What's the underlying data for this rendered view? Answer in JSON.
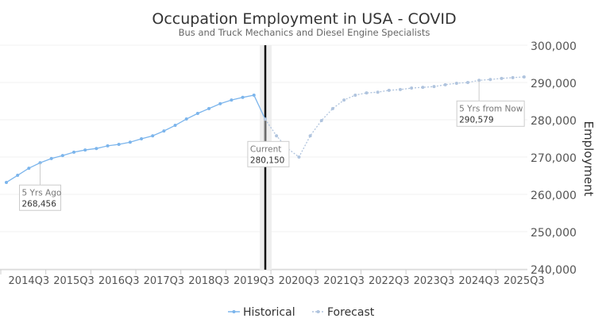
{
  "chart_data": {
    "type": "line",
    "title": "Occupation Employment in USA - COVID",
    "subtitle": "Bus and Truck Mechanics and Diesel Engine Specialists",
    "ylabel": "Employment",
    "xlabel": "",
    "ylim": [
      240000,
      300000
    ],
    "yticks": [
      "240,000",
      "250,000",
      "260,000",
      "270,000",
      "280,000",
      "290,000",
      "300,000"
    ],
    "ytick_values": [
      240000,
      250000,
      260000,
      270000,
      280000,
      290000,
      300000
    ],
    "xtick_labels": [
      "2014Q3",
      "2015Q3",
      "2016Q3",
      "2017Q3",
      "2018Q3",
      "2019Q3",
      "2020Q3",
      "2021Q3",
      "2022Q3",
      "2023Q3",
      "2024Q3",
      "2025Q3"
    ],
    "first_period": "2014Q1",
    "grid": true,
    "legend_position": "bottom",
    "colors": {
      "historical": "#7cb5ec",
      "forecast": "#b0c4de",
      "current_line": "#111111"
    },
    "series": [
      {
        "name": "Historical",
        "start_index": 0,
        "values": [
          263200,
          265100,
          267000,
          268456,
          269600,
          270400,
          271300,
          271900,
          272300,
          273000,
          273400,
          274000,
          274900,
          275700,
          277000,
          278500,
          280200,
          281700,
          283000,
          284300,
          285300,
          286000,
          286600,
          280150
        ]
      },
      {
        "name": "Forecast",
        "start_index": 23,
        "values": [
          280150,
          275700,
          272300,
          270000,
          275700,
          279800,
          283000,
          285300,
          286600,
          287200,
          287400,
          287900,
          288100,
          288500,
          288700,
          288900,
          289400,
          289800,
          290000,
          290579,
          290800,
          291100,
          291300,
          291500
        ]
      }
    ],
    "annotations": [
      {
        "label": "5 Yrs Ago",
        "value_text": "268,456",
        "index": 3
      },
      {
        "label": "Current",
        "value_text": "280,150",
        "index": 23
      },
      {
        "label": "5 Yrs from Now",
        "value_text": "290,579",
        "index": 42
      }
    ]
  }
}
